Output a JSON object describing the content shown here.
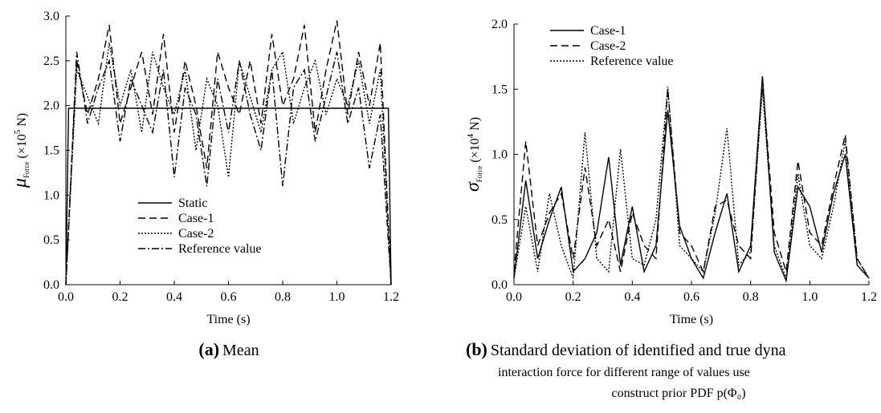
{
  "chart_data": [
    {
      "type": "line",
      "xlabel": "Time (s)",
      "ylabel": {
        "symbol": "μ",
        "subscript": "Force",
        "text": " (×10",
        "sup": "5",
        "unit": " N)"
      },
      "caption": {
        "label": "(a)",
        "lines": [
          "Mean"
        ]
      },
      "xlim": [
        0,
        1.2
      ],
      "ylim": [
        0,
        3
      ],
      "xticks": [
        {
          "value": 0,
          "label": "0.0"
        },
        0.2,
        0.4,
        0.6,
        0.8,
        {
          "value": 1,
          "label": "1.0"
        },
        1.2
      ],
      "yticks": [
        {
          "value": 0,
          "label": "0.0"
        },
        0.5,
        {
          "value": 1,
          "label": "1.0"
        },
        1.5,
        {
          "value": 2,
          "label": "2.0"
        },
        2.5,
        {
          "value": 3,
          "label": "3.0"
        }
      ],
      "legend": "lower-center",
      "x": [
        0,
        0.04,
        0.08,
        0.12,
        0.16,
        0.2,
        0.24,
        0.28,
        0.32,
        0.36,
        0.4,
        0.44,
        0.48,
        0.52,
        0.56,
        0.6,
        0.64,
        0.68,
        0.72,
        0.76,
        0.8,
        0.84,
        0.88,
        0.92,
        0.96,
        1.0,
        1.04,
        1.08,
        1.12,
        1.16,
        1.2
      ],
      "series": [
        {
          "name": "Static",
          "color": "#000000",
          "dash": "solid",
          "x": [
            0,
            0.01,
            1.19,
            1.2
          ],
          "values": [
            0,
            1.97,
            1.97,
            0
          ]
        },
        {
          "name": "Case-1",
          "color": "#000000",
          "dash": "dashed",
          "values": [
            0,
            2.5,
            1.9,
            2.3,
            2.9,
            1.8,
            2.2,
            2.6,
            1.9,
            2.8,
            1.7,
            2.5,
            2.0,
            1.3,
            2.6,
            2.2,
            1.9,
            2.5,
            1.8,
            2.8,
            2.0,
            2.3,
            2.9,
            1.7,
            2.4,
            2.95,
            1.9,
            2.6,
            2.0,
            2.7,
            0
          ]
        },
        {
          "name": "Case-2",
          "color": "#000000",
          "dash": "dotted",
          "values": [
            0,
            2.4,
            2.1,
            1.8,
            2.7,
            2.0,
            2.4,
            1.7,
            2.6,
            2.2,
            1.9,
            2.4,
            1.5,
            2.3,
            2.0,
            1.2,
            2.5,
            2.1,
            1.7,
            2.4,
            2.6,
            1.8,
            2.2,
            2.5,
            1.9,
            2.3,
            2.0,
            2.5,
            1.8,
            2.4,
            0
          ]
        },
        {
          "name": "Reference value",
          "color": "#000000",
          "dash": "dashdot",
          "values": [
            0,
            2.6,
            1.8,
            2.2,
            2.5,
            1.6,
            2.3,
            2.0,
            1.7,
            2.4,
            1.2,
            2.2,
            1.9,
            1.1,
            2.3,
            1.7,
            2.5,
            1.9,
            1.5,
            2.4,
            1.1,
            2.2,
            2.4,
            1.6,
            2.1,
            2.6,
            1.8,
            2.2,
            1.3,
            1.9,
            0
          ]
        }
      ]
    },
    {
      "type": "line",
      "xlabel": "Time (s)",
      "ylabel": {
        "symbol": "σ",
        "subscript": "Force",
        "text": " (×10",
        "sup": "4",
        "unit": " N)"
      },
      "caption": {
        "label": "(b)",
        "lines": [
          "Standard deviation of identified and true dyna",
          "interaction force for different range of values use",
          "construct prior PDF p(Φ₀)"
        ]
      },
      "xlim": [
        0,
        1.2
      ],
      "ylim": [
        0,
        2
      ],
      "xticks": [
        {
          "value": 0,
          "label": "0.0"
        },
        0.2,
        0.4,
        0.6,
        0.8,
        {
          "value": 1,
          "label": "1.0"
        },
        1.2
      ],
      "yticks": [
        {
          "value": 0,
          "label": "0.0"
        },
        0.5,
        {
          "value": 1,
          "label": "1.0"
        },
        1.5,
        {
          "value": 2,
          "label": "2.0"
        }
      ],
      "legend": "upper-left",
      "x": [
        0,
        0.04,
        0.08,
        0.12,
        0.16,
        0.2,
        0.24,
        0.28,
        0.32,
        0.36,
        0.4,
        0.44,
        0.48,
        0.52,
        0.56,
        0.6,
        0.64,
        0.68,
        0.72,
        0.76,
        0.8,
        0.84,
        0.88,
        0.92,
        0.96,
        1.0,
        1.04,
        1.08,
        1.12,
        1.16,
        1.2
      ],
      "series": [
        {
          "name": "Case-1",
          "color": "#000000",
          "dash": "solid",
          "values": [
            0.05,
            0.8,
            0.2,
            0.5,
            0.75,
            0.1,
            0.2,
            0.4,
            0.98,
            0.15,
            0.6,
            0.1,
            0.3,
            1.34,
            0.45,
            0.2,
            0.05,
            0.4,
            0.7,
            0.1,
            0.3,
            1.6,
            0.25,
            0.03,
            0.75,
            0.6,
            0.25,
            0.7,
            1.0,
            0.15,
            0.05
          ]
        },
        {
          "name": "Case-2",
          "color": "#000000",
          "dash": "dashed",
          "values": [
            0.1,
            1.1,
            0.3,
            0.55,
            0.7,
            0.2,
            0.9,
            0.3,
            0.5,
            0.1,
            0.55,
            0.3,
            0.2,
            1.5,
            0.4,
            0.3,
            0.1,
            0.6,
            0.65,
            0.3,
            0.2,
            1.58,
            0.4,
            0.1,
            0.95,
            0.4,
            0.3,
            0.75,
            1.15,
            0.2,
            0.05
          ]
        },
        {
          "name": "Reference value",
          "color": "#000000",
          "dash": "dotted",
          "values": [
            0.05,
            0.6,
            0.1,
            0.7,
            0.3,
            0.05,
            1.17,
            0.2,
            0.1,
            1.04,
            0.2,
            0.15,
            0.5,
            1.52,
            0.3,
            0.2,
            0.1,
            0.55,
            1.2,
            0.15,
            0.25,
            1.5,
            0.3,
            0.05,
            0.85,
            0.3,
            0.2,
            0.6,
            1.1,
            0.2,
            0.05
          ]
        }
      ]
    }
  ]
}
